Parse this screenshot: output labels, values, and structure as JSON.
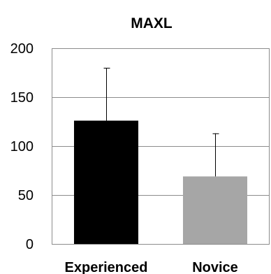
{
  "chart_data": {
    "type": "bar",
    "title": "MAXL",
    "xlabel": "",
    "ylabel": "",
    "categories": [
      "Experienced",
      "Novice"
    ],
    "values": [
      126,
      69
    ],
    "error_upper": [
      180,
      113
    ],
    "ylim": [
      0,
      200
    ],
    "yticks": [
      "0",
      "50",
      "100",
      "150",
      "200"
    ],
    "grid": true,
    "legend": "none",
    "colors": {
      "bars": [
        "#000000",
        "#a6a6a6"
      ],
      "grid": "#8c8c8c",
      "error_bar": "#000000"
    }
  }
}
